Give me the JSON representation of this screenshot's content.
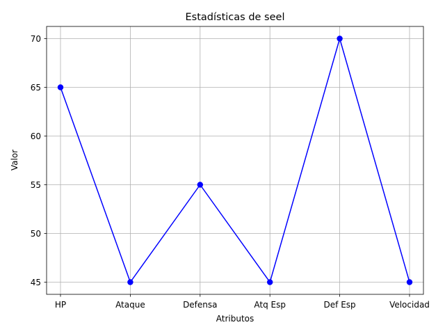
{
  "chart_data": {
    "type": "line",
    "title": "Estadísticas de seel",
    "xlabel": "Atributos",
    "ylabel": "Valor",
    "categories": [
      "HP",
      "Ataque",
      "Defensa",
      "Atq Esp",
      "Def Esp",
      "Velocidad"
    ],
    "series": [
      {
        "values": [
          65,
          45,
          55,
          45,
          70,
          45
        ]
      }
    ],
    "yticks": [
      45,
      50,
      55,
      60,
      65,
      70
    ],
    "ylim": [
      43.75,
      71.25
    ],
    "grid": true,
    "line_color": "#0000ff",
    "marker": "circle"
  }
}
